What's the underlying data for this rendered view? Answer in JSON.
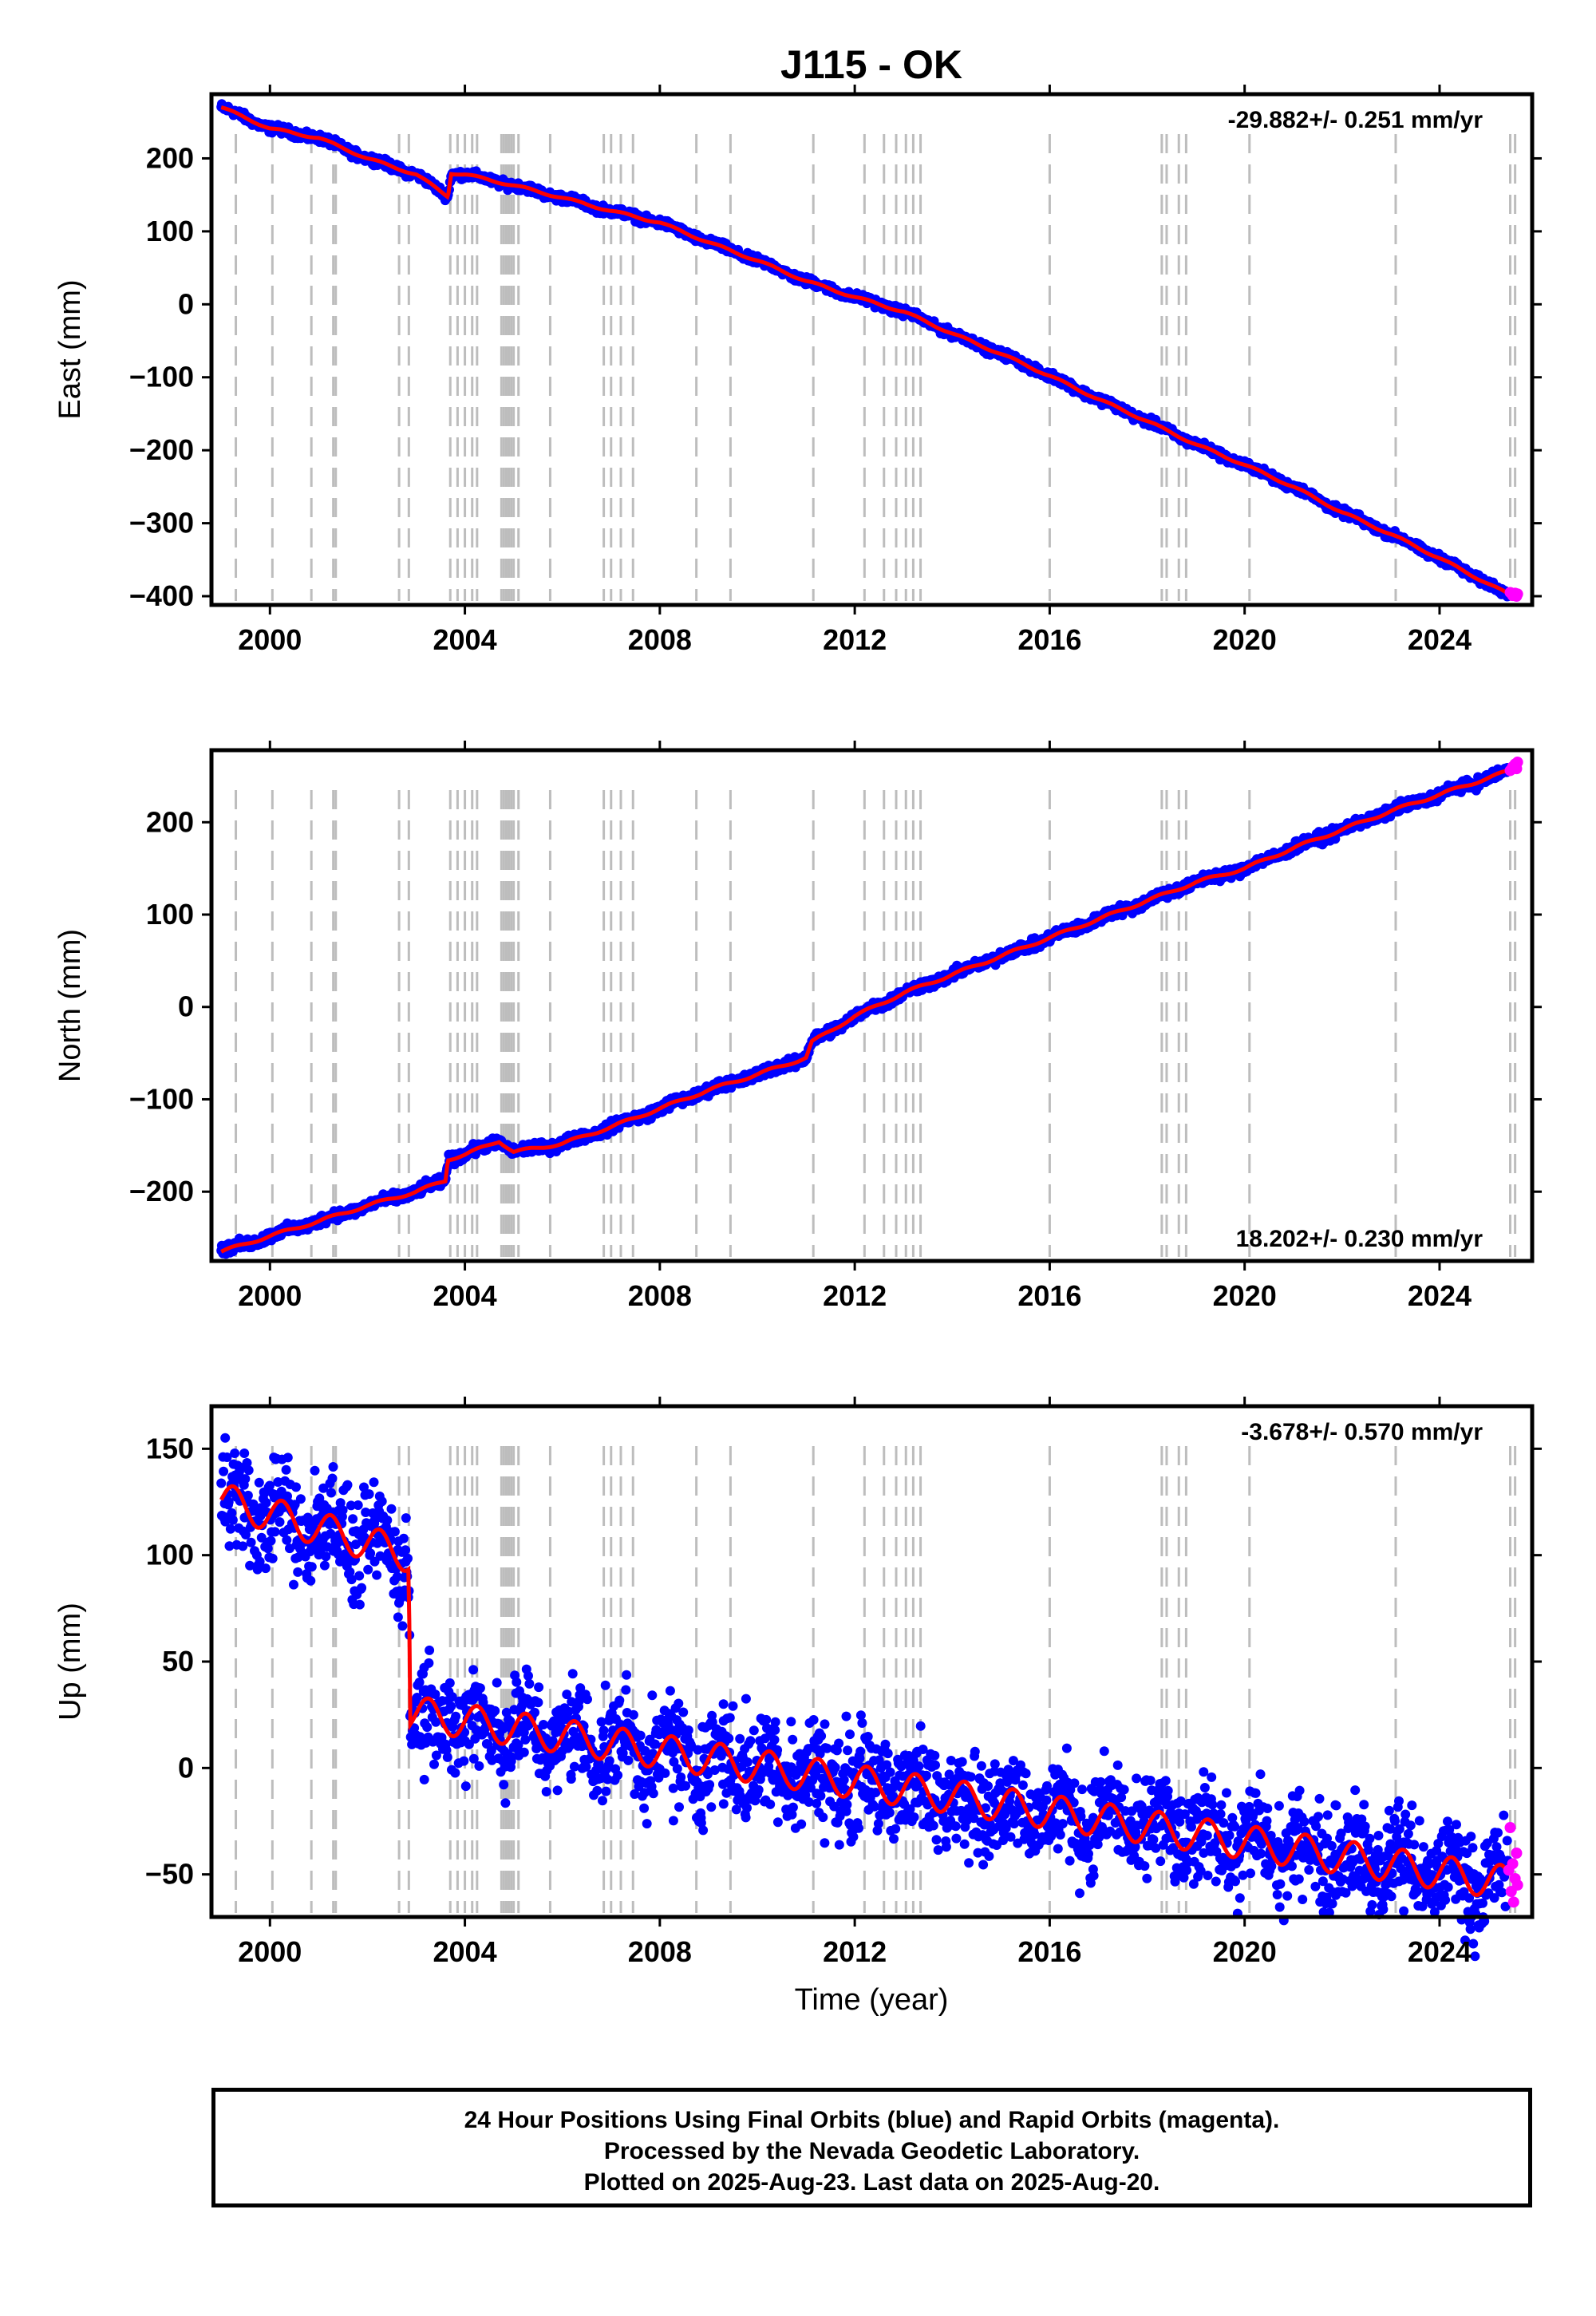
{
  "figure": {
    "title": "J115 - OK",
    "x_axis_label": "Time (year)",
    "colors": {
      "final": "#0000ff",
      "rapid": "#ff00ff",
      "model": "#ff0000",
      "events": "#bdbdbd",
      "frame": "#000000"
    }
  },
  "footer": {
    "line1": "24 Hour Positions Using Final Orbits (blue) and Rapid Orbits (magenta).",
    "line2": "Processed by the Nevada Geodetic Laboratory.",
    "line3": "Plotted on 2025-Aug-23. Last data on 2025-Aug-20."
  },
  "chart_data": [
    {
      "type": "scatter",
      "name": "east",
      "ylabel": "East (mm)",
      "rate_text": "-29.882+/- 0.251 mm/yr",
      "rate_position": "top-right",
      "xlim": [
        1998.8,
        2025.9
      ],
      "ylim": [
        -412,
        288
      ],
      "xticks": [
        2000,
        2004,
        2008,
        2012,
        2016,
        2020,
        2024
      ],
      "xtick_labels": [
        "2000",
        "2004",
        "2008",
        "2012",
        "2016",
        "2020",
        "2024"
      ],
      "yticks": [
        200,
        100,
        0,
        -100,
        -200,
        -300,
        -400
      ],
      "ytick_labels": [
        "200",
        "100",
        "0",
        "−100",
        "−200",
        "−300",
        "−400"
      ],
      "trend_points": [
        [
          1999.0,
          270
        ],
        [
          2000.0,
          241
        ],
        [
          2001.0,
          228
        ],
        [
          2002.0,
          200
        ],
        [
          2003.0,
          178
        ],
        [
          2003.65,
          148
        ],
        [
          2003.72,
          180
        ],
        [
          2004.0,
          178
        ],
        [
          2005.0,
          163
        ],
        [
          2006.0,
          146
        ],
        [
          2007.0,
          128
        ],
        [
          2008.0,
          112
        ],
        [
          2009.0,
          85
        ],
        [
          2010.0,
          60
        ],
        [
          2011.0,
          32
        ],
        [
          2012.0,
          10
        ],
        [
          2013.0,
          -10
        ],
        [
          2014.0,
          -40
        ],
        [
          2015.0,
          -68
        ],
        [
          2016.0,
          -98
        ],
        [
          2017.0,
          -130
        ],
        [
          2018.0,
          -160
        ],
        [
          2019.0,
          -192
        ],
        [
          2020.0,
          -220
        ],
        [
          2021.0,
          -250
        ],
        [
          2022.0,
          -285
        ],
        [
          2023.0,
          -315
        ],
        [
          2024.0,
          -348
        ],
        [
          2025.0,
          -383
        ],
        [
          2025.4,
          -397
        ]
      ],
      "scatter_half_width": 4,
      "seasonal_amplitude": 1.5,
      "rapid_points": [
        [
          2025.45,
          -395
        ],
        [
          2025.5,
          -399
        ],
        [
          2025.55,
          -396
        ],
        [
          2025.58,
          -400
        ],
        [
          2025.6,
          -397
        ]
      ]
    },
    {
      "type": "scatter",
      "name": "north",
      "ylabel": "North (mm)",
      "rate_text": "18.202+/- 0.230 mm/yr",
      "rate_position": "bottom-right",
      "xlim": [
        1998.8,
        2025.9
      ],
      "ylim": [
        -275,
        278
      ],
      "xticks": [
        2000,
        2004,
        2008,
        2012,
        2016,
        2020,
        2024
      ],
      "xtick_labels": [
        "2000",
        "2004",
        "2008",
        "2012",
        "2016",
        "2020",
        "2024"
      ],
      "yticks": [
        200,
        100,
        0,
        -100,
        -200
      ],
      "ytick_labels": [
        "200",
        "100",
        "0",
        "−100",
        "−200"
      ],
      "trend_points": [
        [
          1999.0,
          -265
        ],
        [
          2000.0,
          -248
        ],
        [
          2001.0,
          -232
        ],
        [
          2002.0,
          -215
        ],
        [
          2003.0,
          -200
        ],
        [
          2003.6,
          -188
        ],
        [
          2003.65,
          -165
        ],
        [
          2004.0,
          -160
        ],
        [
          2004.7,
          -145
        ],
        [
          2005.0,
          -157
        ],
        [
          2006.0,
          -148
        ],
        [
          2007.0,
          -130
        ],
        [
          2008.0,
          -110
        ],
        [
          2009.0,
          -90
        ],
        [
          2010.0,
          -73
        ],
        [
          2011.0,
          -55
        ],
        [
          2011.12,
          -38
        ],
        [
          2012.0,
          -10
        ],
        [
          2013.0,
          15
        ],
        [
          2014.0,
          35
        ],
        [
          2015.0,
          55
        ],
        [
          2016.0,
          75
        ],
        [
          2017.0,
          95
        ],
        [
          2018.0,
          115
        ],
        [
          2019.0,
          135
        ],
        [
          2020.0,
          150
        ],
        [
          2021.0,
          172
        ],
        [
          2022.0,
          192
        ],
        [
          2023.0,
          212
        ],
        [
          2024.0,
          230
        ],
        [
          2025.0,
          248
        ],
        [
          2025.4,
          255
        ]
      ],
      "scatter_half_width": 4,
      "seasonal_amplitude": 1.5,
      "rapid_points": [
        [
          2025.45,
          256
        ],
        [
          2025.5,
          260
        ],
        [
          2025.55,
          263
        ],
        [
          2025.58,
          258
        ],
        [
          2025.6,
          265
        ]
      ]
    },
    {
      "type": "scatter",
      "name": "up",
      "ylabel": "Up (mm)",
      "rate_text": "-3.678+/- 0.570 mm/yr",
      "rate_position": "top-right",
      "xlim": [
        1998.8,
        2025.9
      ],
      "ylim": [
        -70,
        170
      ],
      "xticks": [
        2000,
        2004,
        2008,
        2012,
        2016,
        2020,
        2024
      ],
      "xtick_labels": [
        "2000",
        "2004",
        "2008",
        "2012",
        "2016",
        "2020",
        "2024"
      ],
      "yticks": [
        150,
        100,
        50,
        0,
        -50
      ],
      "ytick_labels": [
        "150",
        "100",
        "50",
        "0",
        "−50"
      ],
      "trend_points": [
        [
          1999.0,
          126
        ],
        [
          2002.85,
          100
        ],
        [
          2002.88,
          26
        ],
        [
          2025.4,
          -54
        ]
      ],
      "scatter_half_width": 16,
      "seasonal_amplitude": 8,
      "rapid_points": [
        [
          2025.42,
          -48
        ],
        [
          2025.45,
          -28
        ],
        [
          2025.47,
          -58
        ],
        [
          2025.5,
          -45
        ],
        [
          2025.52,
          -63
        ],
        [
          2025.55,
          -52
        ],
        [
          2025.58,
          -40
        ],
        [
          2025.6,
          -55
        ]
      ]
    }
  ],
  "event_lines": [
    1999.3,
    2000.05,
    2000.85,
    2001.3,
    2001.35,
    2002.65,
    2002.85,
    2003.7,
    2003.85,
    2004.0,
    2004.15,
    2004.25,
    2004.75,
    2004.8,
    2004.85,
    2004.9,
    2004.95,
    2005.0,
    2005.1,
    2005.75,
    2006.85,
    2007.0,
    2007.2,
    2007.45,
    2008.75,
    2009.45,
    2011.15,
    2012.2,
    2012.6,
    2012.85,
    2013.05,
    2013.2,
    2013.35,
    2016.0,
    2018.3,
    2018.4,
    2018.65,
    2018.8,
    2020.1,
    2023.1,
    2025.45,
    2025.55
  ]
}
